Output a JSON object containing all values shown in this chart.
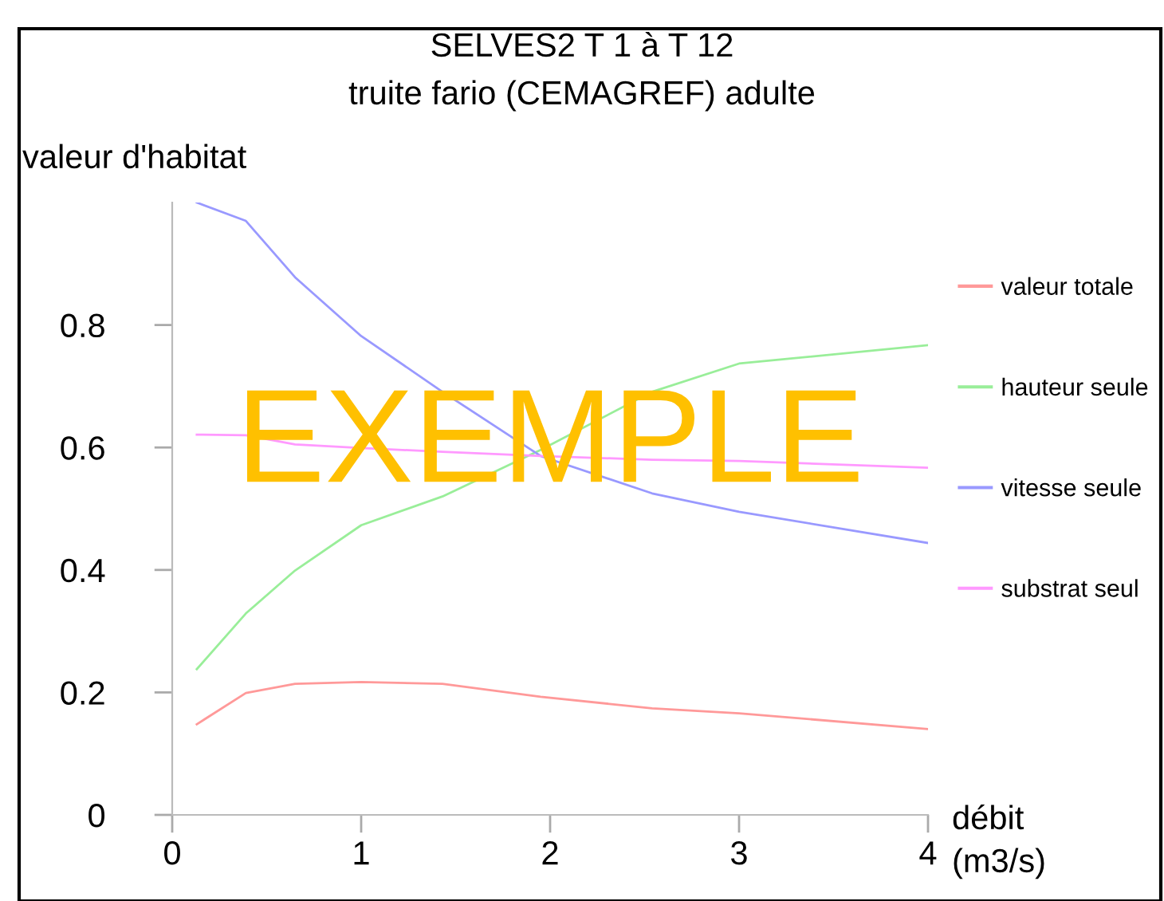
{
  "chart_data": {
    "type": "line",
    "title": "SELVES2 T 1 à T 12",
    "subtitle": "truite fario (CEMAGREF) adulte",
    "ylabel": "valeur d'habitat",
    "xlabel": "débit\n(m3/s)",
    "x": [
      0.13,
      0.39,
      0.65,
      1.0,
      1.43,
      1.95,
      2.54,
      3.0,
      4.0
    ],
    "series": [
      {
        "name": "valeur totale",
        "color": "#ff9999",
        "values": [
          0.148,
          0.199,
          0.214,
          0.217,
          0.214,
          0.193,
          0.174,
          0.166,
          0.14
        ]
      },
      {
        "name": "hauteur seule",
        "color": "#99ee99",
        "values": [
          0.238,
          0.329,
          0.399,
          0.473,
          0.52,
          0.596,
          0.691,
          0.737,
          0.767
        ]
      },
      {
        "name": "vitesse seule",
        "color": "#9999ff",
        "values": [
          1.0,
          0.97,
          0.878,
          0.782,
          0.691,
          0.586,
          0.525,
          0.495,
          0.444
        ]
      },
      {
        "name": "substrat seul",
        "color": "#ff99ff",
        "values": [
          0.621,
          0.62,
          0.605,
          0.599,
          0.593,
          0.586,
          0.58,
          0.578,
          0.567
        ]
      }
    ],
    "xlim": [
      0,
      4
    ],
    "ylim": [
      0,
      1.0
    ],
    "xticks": [
      0,
      1,
      2,
      3,
      4
    ],
    "yticks": [
      0,
      0.2,
      0.4,
      0.6,
      0.8
    ],
    "grid": false,
    "legend": "right",
    "marker": "none",
    "line_style": "solid",
    "annotations": [
      "EXEMPLE"
    ]
  }
}
